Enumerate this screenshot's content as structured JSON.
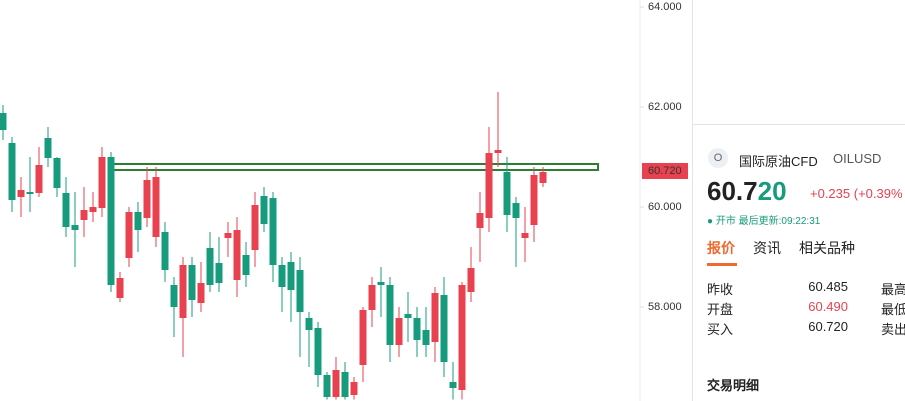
{
  "chart_data": {
    "type": "candlestick",
    "open": [
      61.88,
      61.28,
      60.2,
      60.3,
      60.28,
      61.38,
      60.98,
      60.28,
      59.64,
      59.74,
      59.9,
      59.98,
      61.0,
      58.18,
      58.98,
      59.9,
      59.78,
      59.4,
      59.5,
      58.44,
      57.78,
      58.84,
      58.08,
      59.18,
      58.88,
      59.38,
      58.54,
      59.04,
      59.14,
      60.22,
      60.18,
      58.84,
      58.9,
      58.74,
      57.78,
      57.58,
      56.64,
      56.2,
      56.7,
      56.24,
      56.84,
      57.94,
      58.5,
      58.44,
      57.24,
      57.86,
      57.78,
      57.54,
      57.3,
      58.24,
      56.5,
      56.34,
      58.3,
      59.58,
      59.78,
      61.08,
      60.7,
      60.08,
      59.38,
      59.64,
      60.48
    ],
    "high": [
      62.04,
      61.4,
      60.6,
      61.0,
      61.2,
      61.6,
      61.0,
      60.6,
      60.3,
      60.4,
      60.3,
      61.2,
      61.1,
      58.7,
      60.0,
      60.1,
      60.8,
      60.8,
      59.7,
      58.6,
      59.0,
      59.0,
      58.9,
      59.5,
      59.4,
      59.7,
      59.8,
      59.3,
      60.3,
      60.4,
      60.3,
      59.0,
      59.1,
      59.0,
      57.9,
      57.7,
      56.7,
      57.0,
      56.9,
      56.6,
      58.0,
      58.6,
      58.8,
      58.6,
      58.0,
      58.3,
      58.0,
      58.0,
      58.4,
      58.6,
      56.9,
      58.5,
      59.2,
      60.3,
      61.6,
      62.3,
      61.0,
      60.2,
      60.0,
      60.8,
      60.8
    ],
    "low": [
      61.34,
      59.9,
      59.8,
      59.9,
      60.2,
      60.8,
      60.2,
      59.4,
      58.8,
      59.4,
      59.7,
      59.8,
      58.3,
      58.1,
      58.8,
      59.1,
      59.6,
      59.2,
      58.5,
      57.4,
      57.0,
      57.8,
      57.9,
      58.3,
      58.3,
      59.0,
      58.2,
      58.4,
      58.8,
      59.5,
      58.5,
      57.9,
      57.7,
      57.0,
      56.8,
      56.4,
      56.15,
      56.15,
      56.15,
      56.15,
      56.5,
      57.6,
      57.8,
      56.9,
      57.0,
      57.3,
      57.0,
      57.0,
      56.9,
      56.6,
      56.15,
      56.15,
      58.1,
      58.9,
      59.5,
      60.8,
      59.5,
      58.8,
      58.9,
      59.3,
      60.4
    ],
    "close": [
      61.54,
      60.14,
      60.34,
      60.26,
      60.84,
      60.98,
      60.38,
      59.6,
      59.54,
      59.94,
      60.0,
      61.0,
      58.44,
      58.58,
      59.9,
      59.54,
      60.54,
      60.6,
      58.74,
      58.0,
      58.84,
      58.14,
      58.48,
      58.44,
      58.48,
      59.48,
      59.54,
      58.64,
      60.04,
      59.66,
      58.84,
      58.4,
      58.34,
      57.9,
      57.54,
      56.64,
      56.2,
      56.74,
      56.2,
      56.5,
      57.94,
      58.44,
      58.44,
      57.24,
      57.78,
      57.78,
      57.34,
      57.24,
      58.28,
      56.9,
      56.38,
      58.44,
      58.78,
      59.88,
      61.08,
      61.14,
      59.84,
      59.78,
      59.48,
      60.64,
      60.7
    ],
    "up_color": "#e8414f",
    "down_color": "#169c7c",
    "ylim": [
      56.12,
      64.14
    ],
    "yticks": [
      {
        "value": 58,
        "label": "58.000"
      },
      {
        "value": 60,
        "label": "60.000"
      },
      {
        "value": 62,
        "label": "62.000"
      },
      {
        "value": 64,
        "label": "64.000"
      }
    ],
    "current_price": 60.72,
    "current_price_label": "60.720"
  },
  "panel": {
    "icon": "O",
    "name": "国际原油CFD",
    "symbol": "OILUSD",
    "price_main": "60.7",
    "price_tail": "20",
    "change": "+0.235",
    "change_pct": "(+0.39%",
    "status": "开市",
    "updated": "最后更新:09:22:31",
    "tabs": [
      "报价",
      "资讯",
      "相关品种"
    ],
    "rows": [
      [
        "昨收",
        "60.485",
        "最高"
      ],
      [
        "开盘",
        "60.490",
        "最低"
      ],
      [
        "买入",
        "60.720",
        "卖出"
      ]
    ],
    "section": "交易明细"
  }
}
